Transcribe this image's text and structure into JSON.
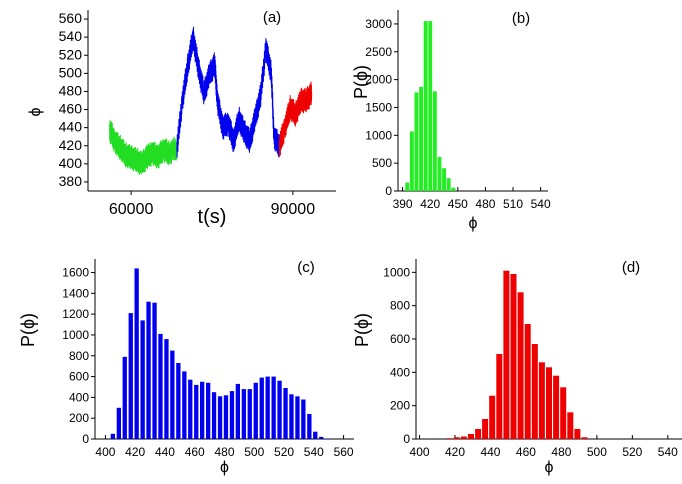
{
  "chart_data": [
    {
      "id": "a",
      "type": "line",
      "panel_label": "(a)",
      "xlabel": "t(s)",
      "ylabel": "ϕ",
      "xlim": [
        52000,
        98000
      ],
      "ylim": [
        370,
        570
      ],
      "xticks": [
        60000,
        90000
      ],
      "yticks": [
        380,
        400,
        420,
        440,
        460,
        480,
        500,
        520,
        540,
        560
      ],
      "series": [
        {
          "color": "#22dd22",
          "x": [
            56000,
            57000,
            58000,
            59000,
            60000,
            61000,
            62000,
            63000,
            64000,
            65000,
            66000,
            67000,
            68500
          ],
          "values": [
            438,
            425,
            418,
            410,
            407,
            404,
            400,
            408,
            412,
            408,
            416,
            412,
            418
          ]
        },
        {
          "color": "#0000ee",
          "x": [
            68500,
            69500,
            70500,
            71500,
            72500,
            73500,
            74500,
            75500,
            76000,
            77000,
            78000,
            79000,
            80000,
            81000,
            82000,
            83000,
            84000,
            85000,
            86000,
            86500,
            87500
          ],
          "values": [
            418,
            470,
            508,
            540,
            505,
            478,
            498,
            510,
            470,
            440,
            445,
            425,
            450,
            435,
            425,
            450,
            475,
            528,
            500,
            430,
            420
          ]
        },
        {
          "color": "#ee0000",
          "x": [
            87500,
            88500,
            89500,
            90500,
            91500,
            92500,
            93500
          ],
          "values": [
            420,
            440,
            462,
            455,
            470,
            470,
            478
          ]
        }
      ]
    },
    {
      "id": "b",
      "type": "bar",
      "panel_label": "(b)",
      "xlabel": "ϕ",
      "ylabel": "P(ϕ)",
      "color": "#22ee22",
      "xlim": [
        385,
        548
      ],
      "ylim": [
        0,
        3250
      ],
      "xticks": [
        390,
        420,
        450,
        480,
        510,
        540
      ],
      "yticks": [
        0,
        500,
        1000,
        1500,
        2000,
        2500,
        3000
      ],
      "bin_width": 4.2,
      "x": [
        395,
        400,
        405,
        410,
        415,
        420,
        425,
        430,
        435,
        440,
        445
      ],
      "values": [
        150,
        1070,
        1770,
        1870,
        3050,
        3050,
        1790,
        610,
        410,
        230,
        60
      ]
    },
    {
      "id": "c",
      "type": "bar",
      "panel_label": "(c)",
      "xlabel": "ϕ",
      "ylabel": "P(ϕ)",
      "color": "#0000ee",
      "xlim": [
        393,
        567
      ],
      "ylim": [
        0,
        1730
      ],
      "xticks": [
        400,
        420,
        440,
        460,
        480,
        500,
        520,
        540,
        560
      ],
      "yticks": [
        0,
        200,
        400,
        600,
        800,
        1000,
        1200,
        1400,
        1600
      ],
      "bin_width": 2.9,
      "x": [
        405,
        409,
        413,
        417,
        421,
        425,
        429,
        433,
        437,
        441,
        445,
        449,
        453,
        457,
        461,
        465,
        469,
        473,
        477,
        481,
        485,
        489,
        493,
        497,
        501,
        505,
        509,
        513,
        517,
        521,
        525,
        529,
        533,
        537,
        541,
        545,
        549
      ],
      "values": [
        50,
        300,
        790,
        1210,
        1640,
        1140,
        1320,
        1310,
        1010,
        960,
        850,
        730,
        650,
        570,
        520,
        550,
        540,
        450,
        410,
        420,
        460,
        530,
        480,
        480,
        540,
        590,
        600,
        600,
        560,
        490,
        430,
        410,
        380,
        240,
        70,
        20,
        5
      ]
    },
    {
      "id": "d",
      "type": "bar",
      "panel_label": "(d)",
      "xlabel": "ϕ",
      "ylabel": "P(ϕ)",
      "color": "#ee0000",
      "xlim": [
        398,
        548
      ],
      "ylim": [
        0,
        1080
      ],
      "xticks": [
        400,
        420,
        440,
        460,
        480,
        500,
        520,
        540
      ],
      "yticks": [
        0,
        200,
        400,
        600,
        800,
        1000
      ],
      "bin_width": 3.4,
      "x": [
        417,
        421,
        425,
        429,
        433,
        437,
        441,
        445,
        449,
        453,
        457,
        461,
        465,
        469,
        473,
        477,
        481,
        485,
        489,
        493
      ],
      "values": [
        5,
        10,
        15,
        30,
        60,
        120,
        260,
        510,
        1010,
        990,
        880,
        690,
        570,
        460,
        430,
        380,
        310,
        160,
        60,
        10
      ]
    }
  ]
}
